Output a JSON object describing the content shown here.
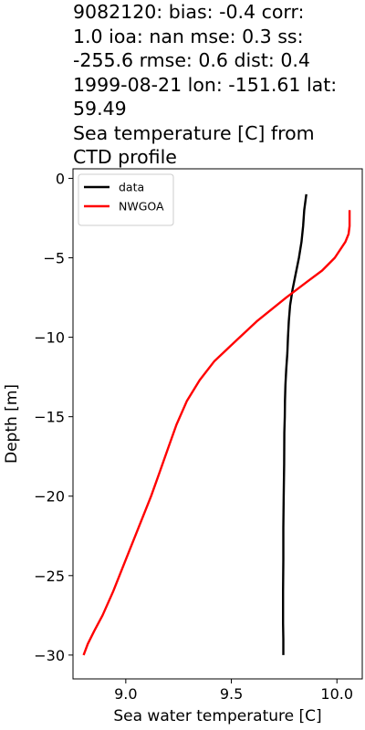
{
  "title_lines": [
    "9082120: bias: -0.4  corr:",
    "1.0  ioa: nan  mse: 0.3  ss:",
    "-255.6  rmse: 0.6  dist: 0.4",
    "1999-08-21 lon: -151.61 lat:",
    "59.49",
    "Sea temperature [C] from",
    "CTD profile"
  ],
  "chart_data": {
    "type": "line",
    "xlabel": "Sea water temperature [C]",
    "ylabel": "Depth [m]",
    "xlim": [
      8.75,
      10.12
    ],
    "ylim": [
      -31.5,
      0.6
    ],
    "xticks": [
      9.0,
      9.5,
      10.0
    ],
    "xtick_labels": [
      "9.0",
      "9.5",
      "10.0"
    ],
    "yticks": [
      0,
      -5,
      -10,
      -15,
      -20,
      -25,
      -30
    ],
    "ytick_labels": [
      "0",
      "−5",
      "−10",
      "−15",
      "−20",
      "−25",
      "−30"
    ],
    "legend_position": "upper-left",
    "grid": false,
    "series": [
      {
        "name": "data",
        "color": "#000000",
        "x": [
          9.855,
          9.845,
          9.84,
          9.832,
          9.82,
          9.805,
          9.79,
          9.778,
          9.772,
          9.768,
          9.765,
          9.76,
          9.756,
          9.754,
          9.753,
          9.751,
          9.75,
          9.748,
          9.747,
          9.746,
          9.746,
          9.745,
          9.745,
          9.746,
          9.746
        ],
        "y": [
          -1,
          -2,
          -3,
          -4,
          -5,
          -6,
          -7,
          -8,
          -9,
          -10,
          -11,
          -12,
          -13,
          -14,
          -15,
          -16,
          -18,
          -20,
          -21,
          -22,
          -24,
          -26,
          -28,
          -29,
          -30
        ]
      },
      {
        "name": "NWGOA",
        "color": "#ff0000",
        "x": [
          10.06,
          10.06,
          10.055,
          10.04,
          9.99,
          9.93,
          9.86,
          9.76,
          9.62,
          9.5,
          9.42,
          9.35,
          9.29,
          9.24,
          9.2,
          9.16,
          9.12,
          9.06,
          9.0,
          8.94,
          8.89,
          8.85,
          8.82,
          8.8
        ],
        "y": [
          -2,
          -3,
          -3.5,
          -4,
          -5,
          -5.8,
          -6.5,
          -7.5,
          -9,
          -10.5,
          -11.5,
          -12.7,
          -14,
          -15.5,
          -17,
          -18.5,
          -20,
          -22,
          -24,
          -26,
          -27.5,
          -28.5,
          -29.3,
          -30
        ]
      }
    ]
  }
}
